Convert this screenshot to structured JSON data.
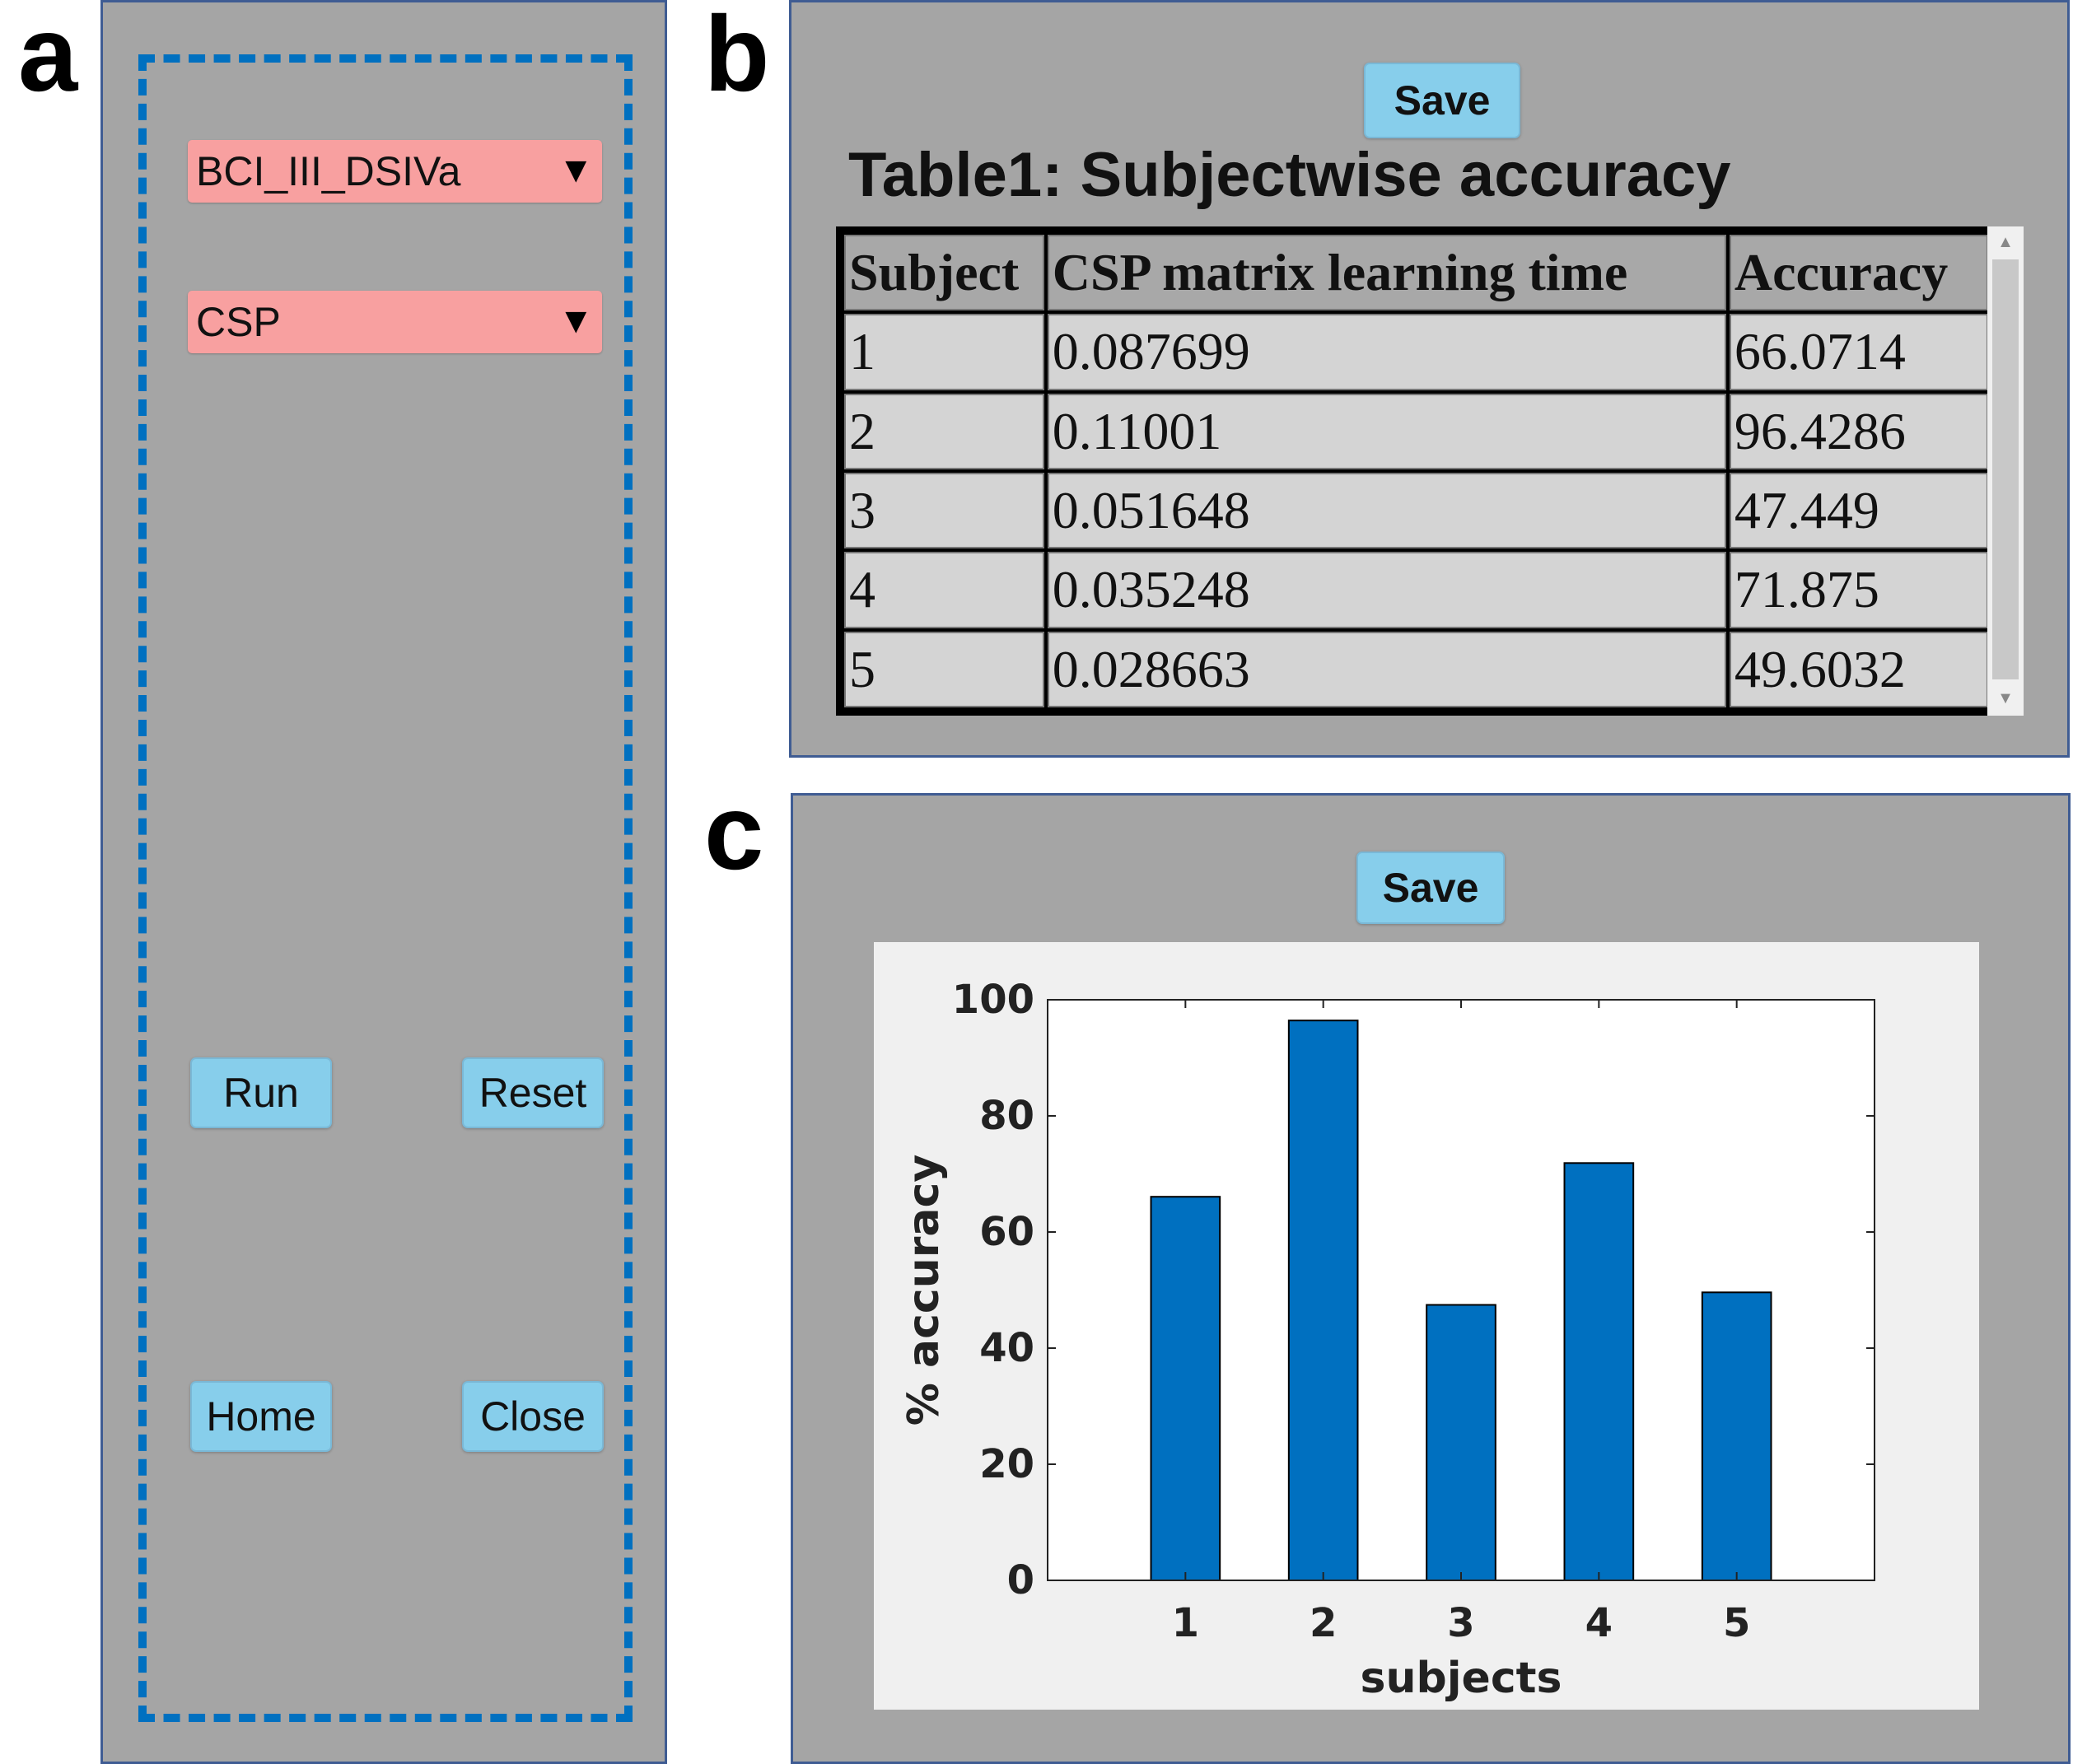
{
  "labels": {
    "a": "a",
    "b": "b",
    "c": "c"
  },
  "panel_a": {
    "dataset_select": "BCI_III_DSIVa",
    "method_select": "CSP",
    "dropdown_arrow": "▼",
    "run_label": "Run",
    "reset_label": "Reset",
    "home_label": "Home",
    "close_label": "Close"
  },
  "panel_b": {
    "save_label": "Save",
    "table_title": "Table1: Subjectwise accuracy",
    "columns": [
      "Subject",
      "CSP matrix learning time",
      "Accuracy"
    ],
    "rows": [
      [
        "1",
        "0.087699",
        "66.0714"
      ],
      [
        "2",
        "0.11001",
        "96.4286"
      ],
      [
        "3",
        "0.051648",
        "47.449"
      ],
      [
        "4",
        "0.035248",
        "71.875"
      ],
      [
        "5",
        "0.028663",
        "49.6032"
      ]
    ]
  },
  "panel_c": {
    "save_label": "Save"
  },
  "chart_data": {
    "type": "bar",
    "categories": [
      "1",
      "2",
      "3",
      "4",
      "5"
    ],
    "values": [
      66.0714,
      96.4286,
      47.449,
      71.875,
      49.6032
    ],
    "title": "",
    "xlabel": "subjects",
    "ylabel": "% accuracy",
    "ylim": [
      0,
      100
    ],
    "yticks": [
      0,
      20,
      40,
      60,
      80,
      100
    ],
    "bar_color": "#0070c0",
    "grid": false
  }
}
